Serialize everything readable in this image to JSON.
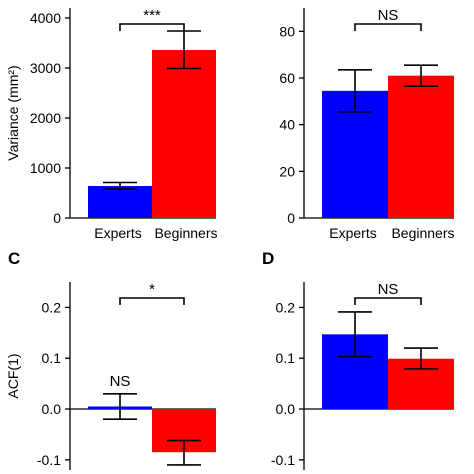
{
  "chart_data": [
    {
      "panel": "",
      "type": "bar",
      "categories": [
        "Experts",
        "Beginners"
      ],
      "values": [
        640,
        3360
      ],
      "errors": [
        [
          580,
          710
        ],
        [
          2990,
          3740
        ]
      ],
      "colors": [
        "#0000ff",
        "#ff0000"
      ],
      "ylabel": "Variance (mm²)",
      "ylim": [
        0,
        4200
      ],
      "yticks": [
        "0",
        "1000",
        "2000",
        "3000",
        "4000"
      ],
      "ytick_values": [
        0,
        1000,
        2000,
        3000,
        4000
      ],
      "comparison": "***",
      "below_marks": [
        "",
        ""
      ],
      "above_marks": [
        "",
        ""
      ],
      "show_xlabels": true
    },
    {
      "panel": "",
      "type": "bar",
      "categories": [
        "Experts",
        "Beginners"
      ],
      "values": [
        54.5,
        61
      ],
      "errors": [
        [
          45.5,
          63.5
        ],
        [
          56.5,
          65.5
        ]
      ],
      "colors": [
        "#0000ff",
        "#ff0000"
      ],
      "ylabel": "",
      "ylim": [
        0,
        90
      ],
      "yticks": [
        "0",
        "20",
        "40",
        "60",
        "80"
      ],
      "ytick_values": [
        0,
        20,
        40,
        60,
        80
      ],
      "comparison": "NS",
      "below_marks": [
        "",
        ""
      ],
      "above_marks": [
        "",
        ""
      ],
      "show_xlabels": true
    },
    {
      "panel": "C",
      "type": "bar",
      "categories": [
        "Experts",
        "Beginners"
      ],
      "values": [
        0.005,
        -0.085
      ],
      "errors": [
        [
          -0.02,
          0.03
        ],
        [
          -0.11,
          -0.062
        ]
      ],
      "colors": [
        "#0000ff",
        "#ff0000"
      ],
      "ylabel": "ACF(1)",
      "ylim": [
        -0.12,
        0.25
      ],
      "yticks": [
        "-0.1",
        "0.0",
        "0.1",
        "0.2"
      ],
      "ytick_values": [
        -0.1,
        0.0,
        0.1,
        0.2
      ],
      "comparison": "*",
      "below_marks": [
        "",
        "**"
      ],
      "above_marks": [
        "NS",
        ""
      ],
      "show_xlabels": false
    },
    {
      "panel": "D",
      "type": "bar",
      "categories": [
        "Experts",
        "Beginners"
      ],
      "values": [
        0.147,
        0.099
      ],
      "errors": [
        [
          0.103,
          0.191
        ],
        [
          0.079,
          0.12
        ]
      ],
      "colors": [
        "#0000ff",
        "#ff0000"
      ],
      "ylabel": "",
      "ylim": [
        -0.12,
        0.25
      ],
      "yticks": [
        "-0.1",
        "0.0",
        "0.1",
        "0.2"
      ],
      "ytick_values": [
        -0.1,
        0.0,
        0.1,
        0.2
      ],
      "comparison": "NS",
      "below_marks": [
        "",
        ""
      ],
      "above_marks": [
        "",
        ""
      ],
      "show_xlabels": false
    }
  ]
}
